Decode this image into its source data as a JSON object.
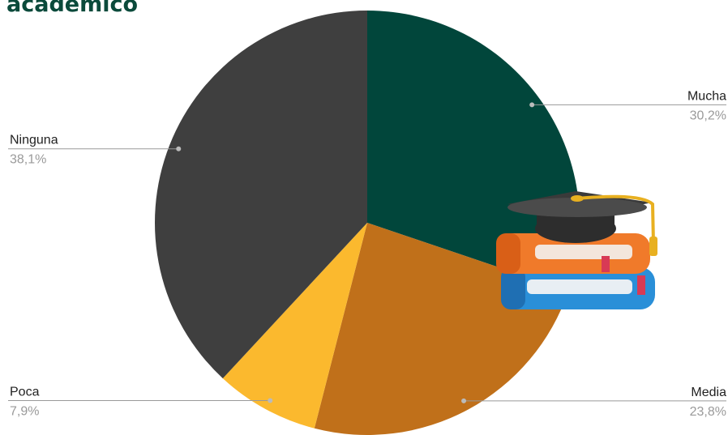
{
  "chart_data": {
    "type": "pie",
    "title": "académico",
    "categories": [
      "Mucha",
      "Media",
      "Poca",
      "Ninguna"
    ],
    "values": [
      30.2,
      23.8,
      7.9,
      38.1
    ],
    "value_labels": [
      "30,2%",
      "23,8%",
      "7,9%",
      "38,1%"
    ],
    "colors": [
      "#01463b",
      "#c0701a",
      "#fbb92e",
      "#3f3f3f"
    ]
  }
}
